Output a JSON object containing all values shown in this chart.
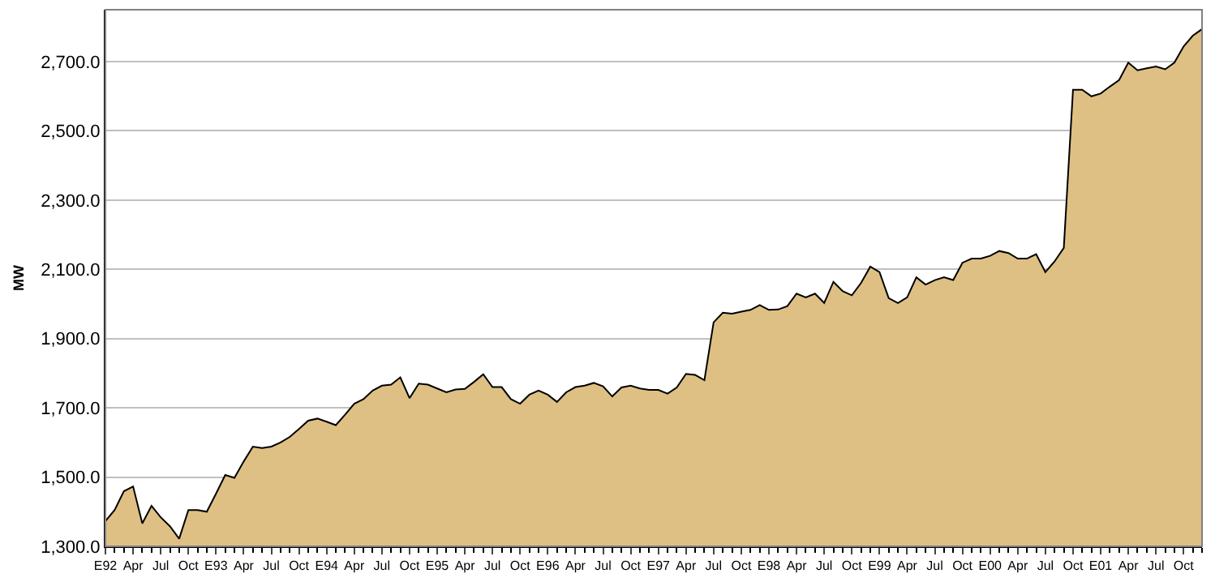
{
  "chart_data": {
    "type": "area",
    "ylabel": "MW",
    "categories": [
      "E92",
      null,
      null,
      "Apr",
      null,
      null,
      "Jul",
      null,
      null,
      "Oct",
      null,
      null,
      "E93",
      null,
      null,
      "Apr",
      null,
      null,
      "Jul",
      null,
      null,
      "Oct",
      null,
      null,
      "E94",
      null,
      null,
      "Apr",
      null,
      null,
      "Jul",
      null,
      null,
      "Oct",
      null,
      null,
      "E95",
      null,
      null,
      "Apr",
      null,
      null,
      "Jul",
      null,
      null,
      "Oct",
      null,
      null,
      "E96",
      null,
      null,
      "Apr",
      null,
      null,
      "Jul",
      null,
      null,
      "Oct",
      null,
      null,
      "E97",
      null,
      null,
      "Apr",
      null,
      null,
      "Jul",
      null,
      null,
      "Oct",
      null,
      null,
      "E98",
      null,
      null,
      "Apr",
      null,
      null,
      "Jul",
      null,
      null,
      "Oct",
      null,
      null,
      "E99",
      null,
      null,
      "Apr",
      null,
      null,
      "Jul",
      null,
      null,
      "Oct",
      null,
      null,
      "E00",
      null,
      null,
      "Apr",
      null,
      null,
      "Jul",
      null,
      null,
      "Oct",
      null,
      null,
      "E01",
      null,
      null,
      "Apr",
      null,
      null,
      "Jul",
      null,
      null,
      "Oct",
      null,
      null
    ],
    "values": [
      1373,
      1405,
      1459,
      1473,
      1366,
      1417,
      1384,
      1358,
      1322,
      1405,
      1405,
      1400,
      1452,
      1506,
      1498,
      1545,
      1588,
      1584,
      1588,
      1600,
      1616,
      1639,
      1663,
      1669,
      1660,
      1650,
      1680,
      1712,
      1725,
      1750,
      1764,
      1767,
      1788,
      1728,
      1770,
      1767,
      1756,
      1745,
      1753,
      1755,
      1775,
      1797,
      1760,
      1760,
      1725,
      1712,
      1738,
      1750,
      1738,
      1717,
      1745,
      1760,
      1764,
      1772,
      1762,
      1733,
      1759,
      1764,
      1756,
      1752,
      1752,
      1741,
      1759,
      1798,
      1795,
      1780,
      1947,
      1975,
      1972,
      1978,
      1983,
      1997,
      1983,
      1984,
      1994,
      2030,
      2019,
      2030,
      2003,
      2064,
      2037,
      2025,
      2061,
      2108,
      2092,
      2017,
      2003,
      2019,
      2077,
      2056,
      2069,
      2077,
      2069,
      2119,
      2131,
      2131,
      2139,
      2153,
      2147,
      2131,
      2131,
      2144,
      2092,
      2123,
      2162,
      2619,
      2619,
      2600,
      2608,
      2628,
      2647,
      2697,
      2675,
      2681,
      2686,
      2678,
      2697,
      2744,
      2775,
      2794
    ],
    "color": "#dfc084",
    "ylim": [
      1300,
      2850
    ],
    "yticks": [
      {
        "value": 1300,
        "label": "1,300.0"
      },
      {
        "value": 1500,
        "label": "1,500.0"
      },
      {
        "value": 1700,
        "label": "1,700.0"
      },
      {
        "value": 1900,
        "label": "1,900.0"
      },
      {
        "value": 2100,
        "label": "2,100.0"
      },
      {
        "value": 2300,
        "label": "2,300.0"
      },
      {
        "value": 2500,
        "label": "2,500.0"
      },
      {
        "value": 2700,
        "label": "2,700.0"
      }
    ],
    "grid": "y"
  }
}
